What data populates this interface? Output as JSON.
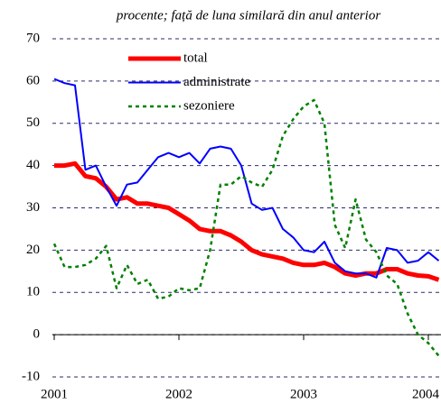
{
  "chart_data": {
    "type": "line",
    "subtitle": "procente; față de luna similară din anul anterior",
    "categories": [
      "2001",
      null,
      null,
      null,
      null,
      null,
      null,
      null,
      null,
      null,
      null,
      null,
      "2002",
      null,
      null,
      null,
      null,
      null,
      null,
      null,
      null,
      null,
      null,
      null,
      "2003",
      null,
      null,
      null,
      null,
      null,
      null,
      null,
      null,
      null,
      null,
      null,
      "2004",
      null
    ],
    "series": [
      {
        "name": "total",
        "color": "#ff0000",
        "width": 5,
        "dashed": false,
        "values": [
          40,
          40,
          40.5,
          37.5,
          37,
          35,
          32,
          32.5,
          31,
          31,
          30.5,
          30,
          28.5,
          27,
          25,
          24.5,
          24.5,
          23.5,
          22,
          20,
          19,
          18.5,
          18,
          17,
          16.5,
          16.5,
          17,
          16,
          14.5,
          14,
          14.5,
          14.5,
          15.5,
          15.5,
          14.5,
          14,
          13.8,
          13
        ]
      },
      {
        "name": "administrate",
        "color": "#0000ff",
        "width": 2,
        "dashed": false,
        "values": [
          60.5,
          59.5,
          59,
          39,
          40,
          35,
          30.5,
          35.5,
          36,
          39,
          42,
          43,
          42,
          43,
          40.5,
          44,
          44.5,
          44,
          40,
          31,
          29.5,
          30,
          25,
          23,
          20,
          19.5,
          22,
          17,
          15,
          14.5,
          14.5,
          13.5,
          20.5,
          20,
          17,
          17.5,
          19.5,
          17.5
        ]
      },
      {
        "name": "sezoniere",
        "color": "#008000",
        "width": 2.5,
        "dashed": true,
        "values": [
          21.5,
          16,
          16,
          16.5,
          18,
          21,
          11,
          16.5,
          12,
          13,
          8.5,
          9,
          11,
          10.5,
          11,
          20,
          35.5,
          35.5,
          37.5,
          36,
          35,
          39,
          47,
          51,
          54,
          55.5,
          50,
          26,
          20.5,
          32,
          22.5,
          19.5,
          14,
          12,
          5,
          0,
          -2,
          -5
        ]
      }
    ],
    "ylim": [
      -10,
      70
    ],
    "yticks": [
      -10,
      0,
      10,
      20,
      30,
      40,
      50,
      60,
      70
    ],
    "grid": true
  }
}
